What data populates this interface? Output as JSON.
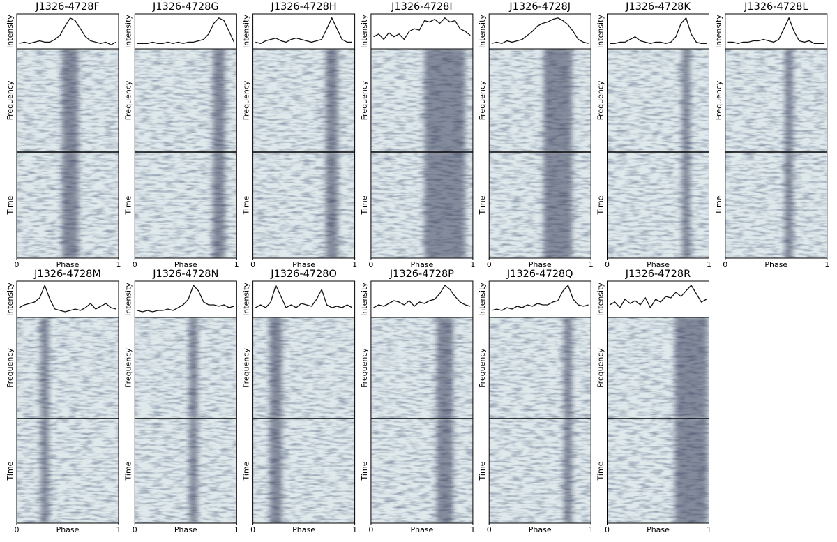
{
  "chart_data": [
    {
      "type": "line",
      "title": "J1326-4728F",
      "ylabels": [
        "Intensity",
        "Frequency",
        "Time"
      ],
      "xlabel": "Phase",
      "xlim": [
        0,
        1
      ],
      "xticks": [
        0,
        1
      ],
      "ylim": [
        -0.15,
        1.15
      ],
      "x": [
        0.025,
        0.075,
        0.125,
        0.175,
        0.225,
        0.275,
        0.325,
        0.375,
        0.425,
        0.475,
        0.525,
        0.575,
        0.625,
        0.675,
        0.725,
        0.775,
        0.825,
        0.875,
        0.925,
        0.975
      ],
      "values": [
        0.05,
        0.1,
        0.05,
        0.1,
        0.15,
        0.1,
        0.1,
        0.2,
        0.35,
        0.7,
        1,
        0.9,
        0.6,
        0.3,
        0.15,
        0.1,
        0.05,
        0.1,
        0,
        0.1
      ]
    },
    {
      "type": "line",
      "title": "J1326-4728G",
      "ylabels": [
        "Intensity",
        "Frequency",
        "Time"
      ],
      "xlabel": "Phase",
      "xlim": [
        0,
        1
      ],
      "xticks": [
        0,
        1
      ],
      "ylim": [
        -0.15,
        1.15
      ],
      "x": [
        0.025,
        0.075,
        0.125,
        0.175,
        0.225,
        0.275,
        0.325,
        0.375,
        0.425,
        0.475,
        0.525,
        0.575,
        0.625,
        0.675,
        0.725,
        0.775,
        0.825,
        0.875,
        0.925,
        0.975
      ],
      "values": [
        0.05,
        0.05,
        0.05,
        0.1,
        0.05,
        0.05,
        0.1,
        0.05,
        0.1,
        0.05,
        0.1,
        0.1,
        0.15,
        0.2,
        0.4,
        0.8,
        1,
        0.9,
        0.5,
        0.1
      ]
    },
    {
      "type": "line",
      "title": "J1326-4728H",
      "ylabels": [
        "Intensity",
        "Frequency",
        "Time"
      ],
      "xlabel": "Phase",
      "xlim": [
        0,
        1
      ],
      "xticks": [
        0,
        1
      ],
      "ylim": [
        -0.15,
        1.15
      ],
      "x": [
        0.025,
        0.075,
        0.125,
        0.175,
        0.225,
        0.275,
        0.325,
        0.375,
        0.425,
        0.475,
        0.525,
        0.575,
        0.625,
        0.675,
        0.725,
        0.775,
        0.825,
        0.875,
        0.925,
        0.975
      ],
      "values": [
        0.1,
        0.05,
        0.15,
        0.2,
        0.25,
        0.15,
        0.1,
        0.2,
        0.25,
        0.2,
        0.15,
        0.1,
        0.15,
        0.2,
        0.6,
        1,
        0.6,
        0.2,
        0.1,
        0.1
      ]
    },
    {
      "type": "line",
      "title": "J1326-4728I",
      "ylabels": [
        "Intensity",
        "Frequency",
        "Time"
      ],
      "xlabel": "Phase",
      "xlim": [
        0,
        1
      ],
      "xticks": [
        0,
        1
      ],
      "ylim": [
        -0.15,
        1.15
      ],
      "x": [
        0.025,
        0.075,
        0.125,
        0.175,
        0.225,
        0.275,
        0.325,
        0.375,
        0.425,
        0.475,
        0.525,
        0.575,
        0.625,
        0.675,
        0.725,
        0.775,
        0.825,
        0.875,
        0.925,
        0.975
      ],
      "values": [
        0.3,
        0.4,
        0.2,
        0.45,
        0.3,
        0.4,
        0.2,
        0.5,
        0.6,
        0.55,
        0.9,
        0.85,
        0.95,
        0.8,
        1,
        0.85,
        0.9,
        0.6,
        0.5,
        0.35
      ]
    },
    {
      "type": "line",
      "title": "J1326-4728J",
      "ylabels": [
        "Intensity",
        "Frequency",
        "Time"
      ],
      "xlabel": "Phase",
      "xlim": [
        0,
        1
      ],
      "xticks": [
        0,
        1
      ],
      "ylim": [
        -0.15,
        1.15
      ],
      "x": [
        0.025,
        0.075,
        0.125,
        0.175,
        0.225,
        0.275,
        0.325,
        0.375,
        0.425,
        0.475,
        0.525,
        0.575,
        0.625,
        0.675,
        0.725,
        0.775,
        0.825,
        0.875,
        0.925,
        0.975
      ],
      "values": [
        0.05,
        0.1,
        0.05,
        0.15,
        0.1,
        0.15,
        0.2,
        0.35,
        0.5,
        0.7,
        0.8,
        0.85,
        0.95,
        1,
        0.9,
        0.75,
        0.5,
        0.2,
        0.1,
        0.05
      ]
    },
    {
      "type": "line",
      "title": "J1326-4728K",
      "ylabels": [
        "Intensity",
        "Frequency",
        "Time"
      ],
      "xlabel": "Phase",
      "xlim": [
        0,
        1
      ],
      "xticks": [
        0,
        1
      ],
      "ylim": [
        -0.15,
        1.15
      ],
      "x": [
        0.025,
        0.075,
        0.125,
        0.175,
        0.225,
        0.275,
        0.325,
        0.375,
        0.425,
        0.475,
        0.525,
        0.575,
        0.625,
        0.675,
        0.725,
        0.775,
        0.825,
        0.875,
        0.925,
        0.975
      ],
      "values": [
        0.05,
        0.05,
        0.1,
        0.1,
        0.2,
        0.3,
        0.15,
        0.1,
        0.05,
        0.1,
        0.1,
        0.05,
        0.1,
        0.3,
        0.8,
        1,
        0.4,
        0.1,
        0.05,
        0.05
      ]
    },
    {
      "type": "line",
      "title": "J1326-4728L",
      "ylabels": [
        "Intensity",
        "Frequency",
        "Time"
      ],
      "xlabel": "Phase",
      "xlim": [
        0,
        1
      ],
      "xticks": [
        0,
        1
      ],
      "ylim": [
        -0.15,
        1.15
      ],
      "x": [
        0.025,
        0.075,
        0.125,
        0.175,
        0.225,
        0.275,
        0.325,
        0.375,
        0.425,
        0.475,
        0.525,
        0.575,
        0.625,
        0.675,
        0.725,
        0.775,
        0.825,
        0.875,
        0.925,
        0.975
      ],
      "values": [
        0.1,
        0.1,
        0.05,
        0.1,
        0.1,
        0.15,
        0.15,
        0.2,
        0.15,
        0.1,
        0.2,
        0.6,
        1,
        0.5,
        0.15,
        0.1,
        0.15,
        0.05,
        0.05,
        0.05
      ]
    },
    {
      "type": "line",
      "title": "J1326-4728M",
      "ylabels": [
        "Intensity",
        "Frequency",
        "Time"
      ],
      "xlabel": "Phase",
      "xlim": [
        0,
        1
      ],
      "xticks": [
        0,
        1
      ],
      "ylim": [
        -0.15,
        1.15
      ],
      "x": [
        0.025,
        0.075,
        0.125,
        0.175,
        0.225,
        0.275,
        0.325,
        0.375,
        0.425,
        0.475,
        0.525,
        0.575,
        0.625,
        0.675,
        0.725,
        0.775,
        0.825,
        0.875,
        0.925,
        0.975
      ],
      "values": [
        0.2,
        0.3,
        0.35,
        0.4,
        0.55,
        1,
        0.5,
        0.15,
        0.1,
        0.05,
        0.1,
        0.15,
        0.1,
        0.2,
        0.35,
        0.15,
        0.25,
        0.35,
        0.2,
        0.15
      ]
    },
    {
      "type": "line",
      "title": "J1326-4728N",
      "ylabels": [
        "Intensity",
        "Frequency",
        "Time"
      ],
      "xlabel": "Phase",
      "xlim": [
        0,
        1
      ],
      "xticks": [
        0,
        1
      ],
      "ylim": [
        -0.15,
        1.15
      ],
      "x": [
        0.025,
        0.075,
        0.125,
        0.175,
        0.225,
        0.275,
        0.325,
        0.375,
        0.425,
        0.475,
        0.525,
        0.575,
        0.625,
        0.675,
        0.725,
        0.775,
        0.825,
        0.875,
        0.925,
        0.975
      ],
      "values": [
        0.1,
        0.05,
        0.1,
        0.05,
        0.1,
        0.1,
        0.15,
        0.1,
        0.2,
        0.3,
        0.5,
        1,
        0.8,
        0.4,
        0.3,
        0.3,
        0.25,
        0.3,
        0.2,
        0.25
      ]
    },
    {
      "type": "line",
      "title": "J1326-4728O",
      "ylabels": [
        "Intensity",
        "Frequency",
        "Time"
      ],
      "xlabel": "Phase",
      "xlim": [
        0,
        1
      ],
      "xticks": [
        0,
        1
      ],
      "ylim": [
        -0.15,
        1.15
      ],
      "x": [
        0.025,
        0.075,
        0.125,
        0.175,
        0.225,
        0.275,
        0.325,
        0.375,
        0.425,
        0.475,
        0.525,
        0.575,
        0.625,
        0.675,
        0.725,
        0.775,
        0.825,
        0.875,
        0.925,
        0.975
      ],
      "values": [
        0.2,
        0.3,
        0.2,
        0.4,
        1,
        0.6,
        0.2,
        0.3,
        0.2,
        0.35,
        0.3,
        0.25,
        0.5,
        0.85,
        0.3,
        0.2,
        0.25,
        0.2,
        0.3,
        0.2
      ]
    },
    {
      "type": "line",
      "title": "J1326-4728P",
      "ylabels": [
        "Intensity",
        "Frequency",
        "Time"
      ],
      "xlabel": "Phase",
      "xlim": [
        0,
        1
      ],
      "xticks": [
        0,
        1
      ],
      "ylim": [
        -0.15,
        1.15
      ],
      "x": [
        0.025,
        0.075,
        0.125,
        0.175,
        0.225,
        0.275,
        0.325,
        0.375,
        0.425,
        0.475,
        0.525,
        0.575,
        0.625,
        0.675,
        0.725,
        0.775,
        0.825,
        0.875,
        0.925,
        0.975
      ],
      "values": [
        0.2,
        0.3,
        0.25,
        0.35,
        0.45,
        0.4,
        0.3,
        0.45,
        0.25,
        0.4,
        0.35,
        0.45,
        0.5,
        0.7,
        1,
        0.85,
        0.6,
        0.4,
        0.3,
        0.25
      ]
    },
    {
      "type": "line",
      "title": "J1326-4728Q",
      "ylabels": [
        "Intensity",
        "Frequency",
        "Time"
      ],
      "xlabel": "Phase",
      "xlim": [
        0,
        1
      ],
      "xticks": [
        0,
        1
      ],
      "ylim": [
        -0.15,
        1.15
      ],
      "x": [
        0.025,
        0.075,
        0.125,
        0.175,
        0.225,
        0.275,
        0.325,
        0.375,
        0.425,
        0.475,
        0.525,
        0.575,
        0.625,
        0.675,
        0.725,
        0.775,
        0.825,
        0.875,
        0.925,
        0.975
      ],
      "values": [
        0.1,
        0.15,
        0.1,
        0.2,
        0.15,
        0.25,
        0.2,
        0.3,
        0.25,
        0.35,
        0.3,
        0.3,
        0.4,
        0.45,
        0.8,
        1,
        0.5,
        0.3,
        0.25,
        0.3
      ]
    },
    {
      "type": "line",
      "title": "J1326-4728R",
      "ylabels": [
        "Intensity",
        "Frequency",
        "Time"
      ],
      "xlabel": "Phase",
      "xlim": [
        0,
        1
      ],
      "xticks": [
        0,
        1
      ],
      "ylim": [
        -0.15,
        1.15
      ],
      "x": [
        0.025,
        0.075,
        0.125,
        0.175,
        0.225,
        0.275,
        0.325,
        0.375,
        0.425,
        0.475,
        0.525,
        0.575,
        0.625,
        0.675,
        0.725,
        0.775,
        0.825,
        0.875,
        0.925,
        0.975
      ],
      "values": [
        0.3,
        0.4,
        0.2,
        0.5,
        0.35,
        0.45,
        0.3,
        0.55,
        0.2,
        0.5,
        0.4,
        0.6,
        0.55,
        0.75,
        0.6,
        0.8,
        1,
        0.7,
        0.4,
        0.5
      ]
    }
  ]
}
